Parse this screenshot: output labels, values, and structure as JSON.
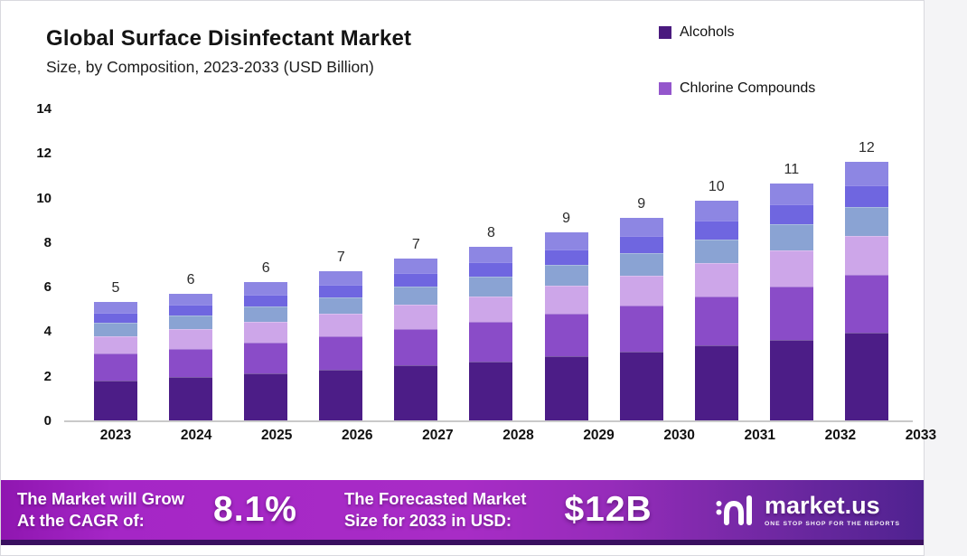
{
  "chart_data": {
    "type": "bar",
    "stacked": true,
    "title": "Global Surface Disinfectant Market",
    "subtitle": "Size, by Composition, 2023-2033 (USD Billion)",
    "unit": "USD Billion",
    "categories": [
      "2023",
      "2024",
      "2025",
      "2026",
      "2027",
      "2028",
      "2029",
      "2030",
      "2031",
      "2032",
      "2033"
    ],
    "ylim": [
      0,
      14
    ],
    "yticks": [
      "0",
      "2",
      "4",
      "6",
      "8",
      "10",
      "12",
      "14"
    ],
    "grid": false,
    "legend_position": "top-right",
    "background": "#ffffff",
    "axis_line_color": "#c9c9c9",
    "legend": [
      {
        "label": "Alcohols",
        "color": "#4a1a7e"
      },
      {
        "label": "Chlorine Compounds",
        "color": "#9456cc"
      }
    ],
    "bar_total_labels": [
      "5",
      "6",
      "6",
      "7",
      "7",
      "8",
      "9",
      "9",
      "10",
      "11",
      "12"
    ],
    "series": [
      {
        "name": "Alcohols",
        "color": "#4c1d87",
        "values": [
          1.8,
          1.94,
          2.11,
          2.28,
          2.47,
          2.65,
          2.87,
          3.09,
          3.35,
          3.62,
          3.94
        ]
      },
      {
        "name": "Chlorine Compounds",
        "color": "#8a4cc8",
        "values": [
          1.19,
          1.28,
          1.4,
          1.51,
          1.63,
          1.76,
          1.9,
          2.05,
          2.22,
          2.4,
          2.61
        ]
      },
      {
        "name": "unlabeled-segment-3",
        "color": "#cda6e9",
        "values": [
          0.8,
          0.86,
          0.93,
          1.0,
          1.09,
          1.17,
          1.27,
          1.37,
          1.48,
          1.6,
          1.74
        ]
      },
      {
        "name": "unlabeled-segment-4",
        "color": "#8aa3d3",
        "values": [
          0.58,
          0.63,
          0.68,
          0.74,
          0.8,
          0.86,
          0.93,
          1.0,
          1.08,
          1.17,
          1.28
        ]
      },
      {
        "name": "unlabeled-segment-5",
        "color": "#6f66e0",
        "values": [
          0.45,
          0.48,
          0.53,
          0.57,
          0.62,
          0.66,
          0.72,
          0.77,
          0.84,
          0.91,
          0.99
        ]
      },
      {
        "name": "unlabeled-segment-6",
        "color": "#8d86e3",
        "values": [
          0.48,
          0.51,
          0.55,
          0.6,
          0.64,
          0.7,
          0.76,
          0.82,
          0.88,
          0.95,
          1.04
        ]
      }
    ]
  },
  "banner": {
    "background_start": "#a82cc6",
    "background_end": "#4f2290",
    "bottom_edge_color": "#3a1060",
    "cagr_text_line1": "The Market will Grow",
    "cagr_text_line2": "At the CAGR of:",
    "cagr_value": "8.1%",
    "forecast_text_line1": "The Forecasted Market",
    "forecast_text_line2": "Size for 2033 in USD:",
    "forecast_value": "$12B",
    "logo_text": "market.us",
    "logo_tagline": "ONE STOP SHOP FOR THE REPORTS"
  }
}
